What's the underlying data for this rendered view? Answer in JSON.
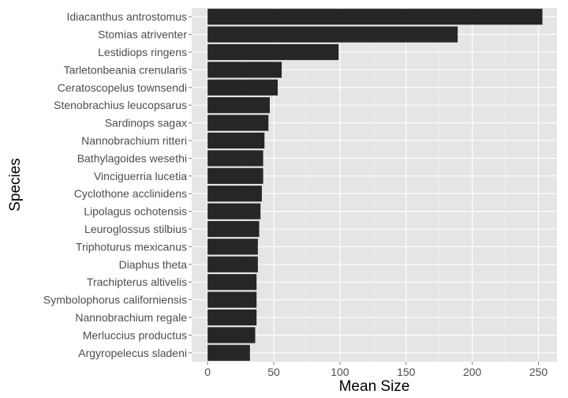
{
  "chart_data": {
    "type": "bar",
    "orientation": "horizontal",
    "xlabel": "Mean Size",
    "ylabel": "Species",
    "xlim": [
      -12,
      264
    ],
    "x_ticks": [
      0,
      50,
      100,
      150,
      200,
      250
    ],
    "grid": true,
    "colors": {
      "bar": "#262626",
      "panel": "#e5e5e5",
      "grid_major": "#ffffff",
      "grid_minor": "#f2f2f2"
    },
    "categories": [
      "Idiacanthus antrostomus",
      "Stomias atriventer",
      "Lestidiops ringens",
      "Tarletonbeania crenularis",
      "Ceratoscopelus townsendi",
      "Stenobrachius leucopsarus",
      "Sardinops sagax",
      "Nannobrachium ritteri",
      "Bathylagoides wesethi",
      "Vinciguerria lucetia",
      "Cyclothone acclinidens",
      "Lipolagus ochotensis",
      "Leuroglossus stilbius",
      "Triphoturus mexicanus",
      "Diaphus theta",
      "Trachipterus altivelis",
      "Symbolophorus californiensis",
      "Nannobrachium regale",
      "Merluccius productus",
      "Argyropelecus sladeni"
    ],
    "values": [
      253,
      189,
      99,
      56,
      53,
      47,
      46,
      43,
      42,
      42,
      41,
      40,
      39,
      38,
      38,
      37,
      37,
      37,
      36,
      32
    ]
  }
}
